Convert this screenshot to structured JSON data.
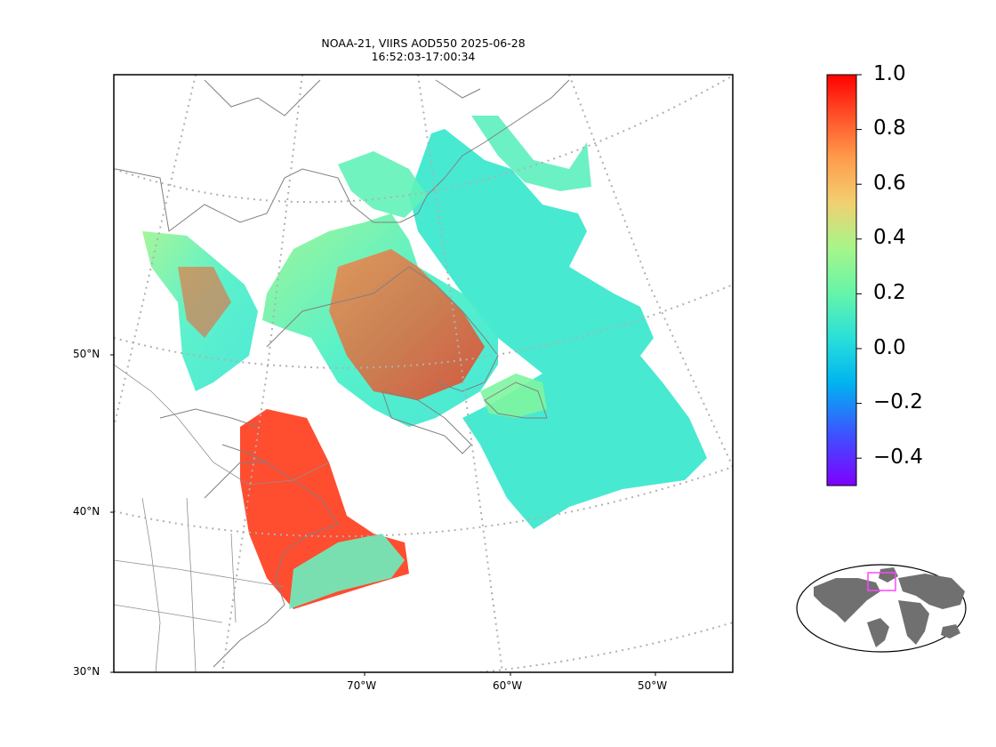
{
  "figure": {
    "title_line1": "NOAA-21, VIIRS AOD550 2025-06-28",
    "title_line2": "16:52:03-17:00:34"
  },
  "axes": {
    "lat_labels": [
      "50°N",
      "40°N",
      "30°N"
    ],
    "lon_labels": [
      "70°W",
      "60°W",
      "50°W"
    ]
  },
  "colorbar": {
    "min": -0.5,
    "max": 1.0,
    "tick_labels": [
      "1.0",
      "0.8",
      "0.6",
      "0.4",
      "0.2",
      "0.0",
      "−0.2",
      "−0.4"
    ],
    "tick_values": [
      1.0,
      0.8,
      0.6,
      0.4,
      0.2,
      0.0,
      -0.2,
      -0.4
    ],
    "colormap": "rainbow"
  },
  "inset": {
    "name": "global-locator-map",
    "highlight_color": "#ff44ff"
  },
  "colors": {
    "coastline": "#808080",
    "gridline": "#b0b0b0",
    "land_inset": "#707070"
  }
}
